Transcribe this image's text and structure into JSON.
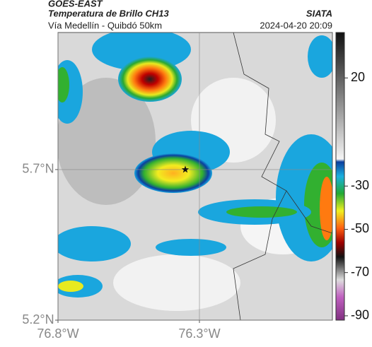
{
  "chart_data": {
    "type": "map",
    "source": "GOES-EAST",
    "title": "Temperatura de Brillo CH13",
    "brand": "SIATA",
    "subtitle": "Vía Medellín - Quibdó 50km",
    "timestamp": "2024-04-20 20:09",
    "xlim": [
      -76.8,
      -75.83
    ],
    "ylim": [
      5.2,
      6.155
    ],
    "xticks": [
      {
        "value": -76.8,
        "label": "76.8°W"
      },
      {
        "value": -76.3,
        "label": "76.3°W"
      }
    ],
    "yticks": [
      {
        "value": 5.2,
        "label": "5.2°N"
      },
      {
        "value": 5.7,
        "label": "5.7°N"
      }
    ],
    "grid": true,
    "points": {
      "x": [
        -76.35
      ],
      "y": [
        5.7
      ]
    },
    "clim": [
      -92,
      41
    ],
    "cticks": [
      20,
      -30,
      -50,
      -70,
      -90
    ]
  }
}
